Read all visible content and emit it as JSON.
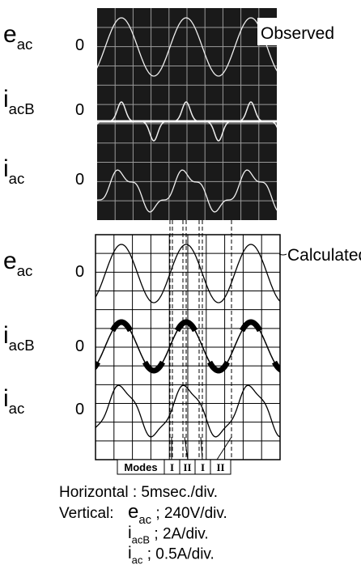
{
  "observed": {
    "title": "Observed",
    "signals": [
      {
        "symbol": "e",
        "subscript": "ac",
        "zero": "0"
      },
      {
        "symbol": "i",
        "subscript": "acB",
        "zero": "0"
      },
      {
        "symbol": "i",
        "subscript": "ac",
        "zero": "0"
      }
    ]
  },
  "calculated": {
    "title": "Calculated",
    "signals": [
      {
        "symbol": "e",
        "subscript": "ac",
        "zero": "0"
      },
      {
        "symbol": "i",
        "subscript": "acB",
        "zero": "0"
      },
      {
        "symbol": "i",
        "subscript": "ac",
        "zero": "0"
      }
    ]
  },
  "modes": {
    "label": "Modes",
    "items": [
      "I",
      "II",
      "I",
      "II"
    ]
  },
  "caption": {
    "horizontal": "Horizontal : 5msec./div.",
    "vertical_prefix": "Vertical:",
    "scales": [
      {
        "symbol": "e",
        "subscript": "ac",
        "text": " ; 240V/div."
      },
      {
        "symbol": "i",
        "subscript": "acB",
        "text": " ; 2A/div."
      },
      {
        "symbol": "i",
        "subscript": "ac",
        "text": " ; 0.5A/div."
      }
    ]
  }
}
